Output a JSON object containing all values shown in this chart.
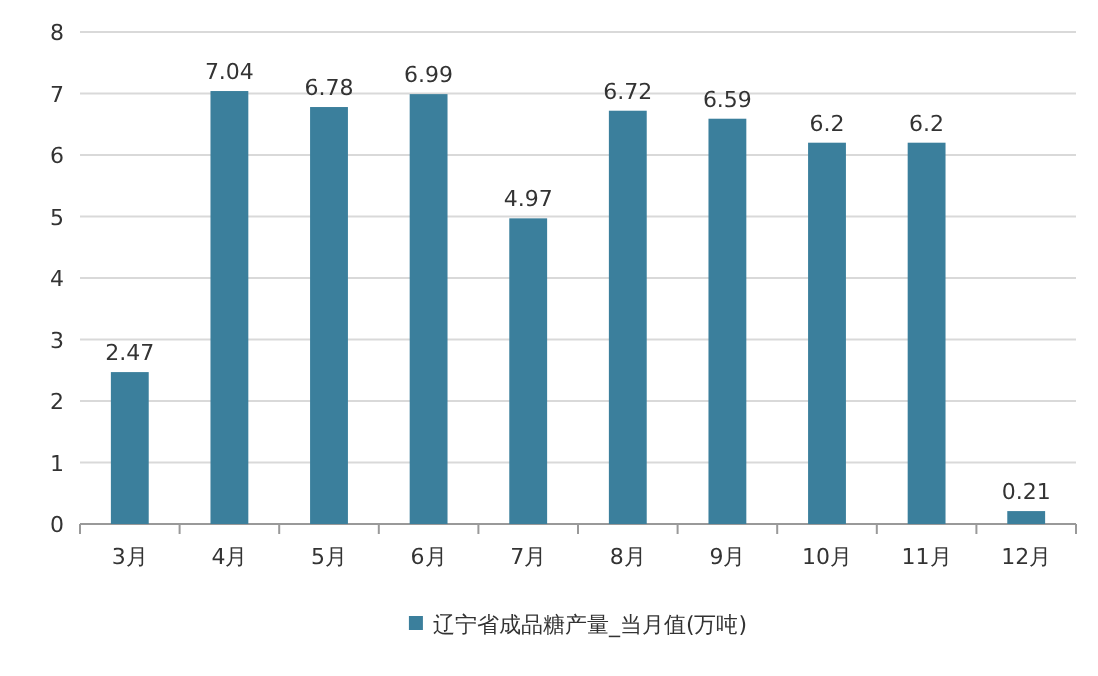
{
  "chart_data": {
    "type": "bar",
    "categories": [
      "3月",
      "4月",
      "5月",
      "6月",
      "7月",
      "8月",
      "9月",
      "10月",
      "11月",
      "12月"
    ],
    "series": [
      {
        "name": "辽宁省成品糖产量_当月值(万吨)",
        "color": "#3b7f9c",
        "values": [
          2.47,
          7.04,
          6.78,
          6.99,
          4.97,
          6.72,
          6.59,
          6.2,
          6.2,
          0.21
        ]
      }
    ],
    "ylim": [
      0,
      8
    ],
    "yticks": [
      0,
      1,
      2,
      3,
      4,
      5,
      6,
      7,
      8
    ],
    "grid": "y",
    "legend": "bottom",
    "data_labels": true
  }
}
